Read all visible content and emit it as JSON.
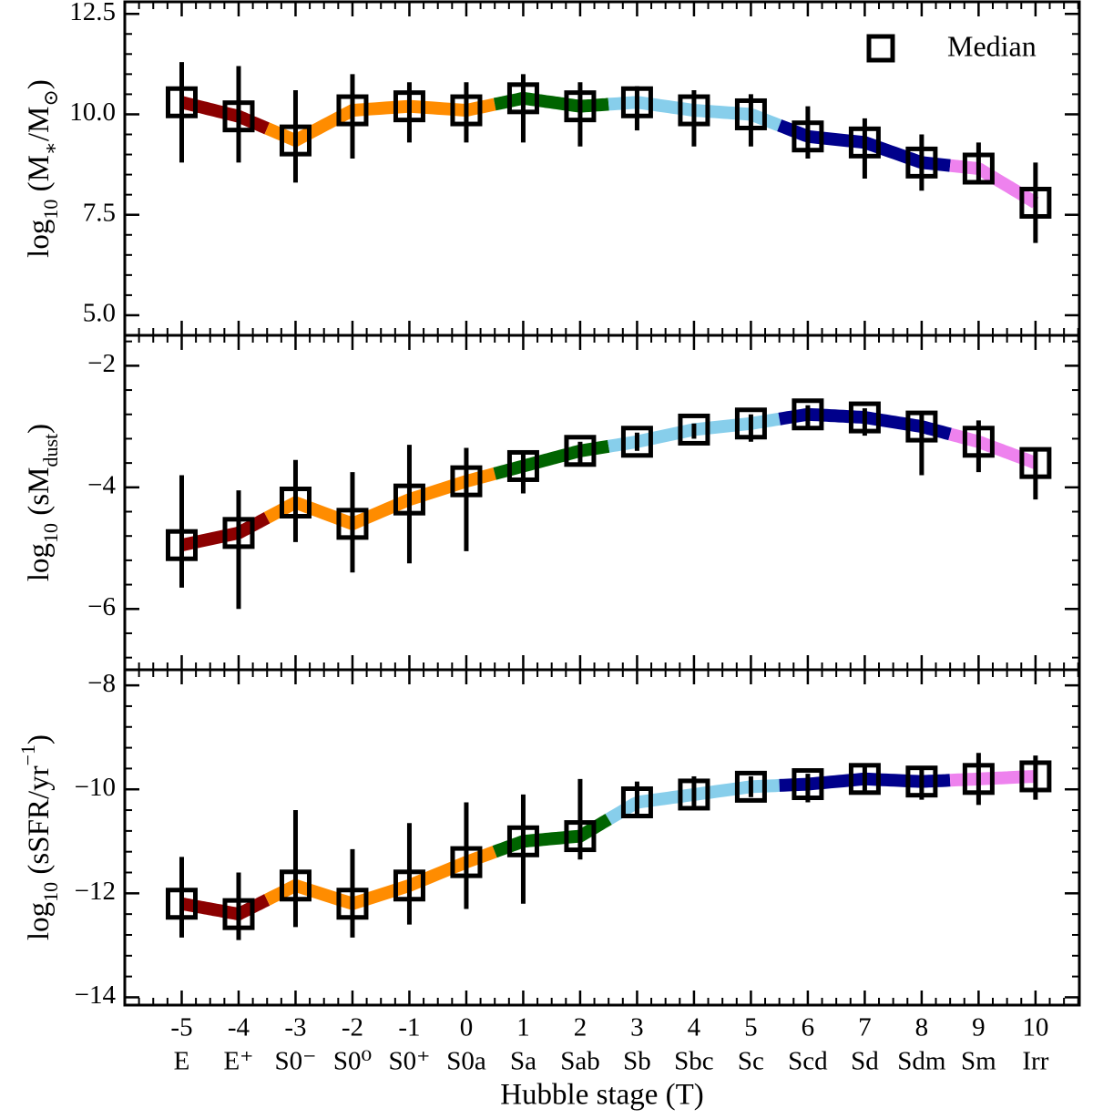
{
  "chart_data": [
    {
      "type": "errorbar",
      "legend": "Median",
      "legend_loc": "upper right",
      "ylabel": [
        {
          "t": "log"
        },
        {
          "t": "10",
          "s": "sub"
        },
        {
          "t": " (M"
        },
        {
          "t": "∗",
          "s": "sub"
        },
        {
          "t": "/M"
        },
        {
          "t": "⊙",
          "s": "sub"
        },
        {
          "t": ")"
        }
      ],
      "ylim": [
        4.5,
        12.8
      ],
      "yticks": [
        {
          "value": 5,
          "label": "5.0"
        },
        7.5,
        {
          "value": 10,
          "label": "10.0"
        },
        12.5
      ],
      "x": [
        -5,
        -4,
        -3,
        -2,
        -1,
        0,
        1,
        2,
        3,
        4,
        5,
        6,
        7,
        8,
        9,
        10
      ],
      "values": [
        10.3,
        9.95,
        9.35,
        10.1,
        10.2,
        10.1,
        10.4,
        10.2,
        10.3,
        10.1,
        10.0,
        9.45,
        9.3,
        8.8,
        8.65,
        7.8
      ],
      "lower": [
        8.8,
        8.8,
        8.3,
        8.9,
        9.3,
        9.3,
        9.3,
        9.2,
        9.6,
        9.2,
        9.2,
        8.9,
        8.4,
        8.1,
        8.3,
        6.8
      ],
      "upper": [
        11.3,
        11.2,
        10.6,
        11.0,
        10.8,
        10.8,
        11.0,
        10.8,
        10.7,
        10.6,
        10.5,
        10.2,
        9.9,
        9.5,
        9.3,
        8.8
      ],
      "segments": [
        {
          "color": "#8b0000",
          "span": [
            -5,
            -3.5
          ]
        },
        {
          "color": "#ff8c00",
          "span": [
            -3.5,
            0.5
          ]
        },
        {
          "color": "#006400",
          "span": [
            0.5,
            2.5
          ]
        },
        {
          "color": "#87ceeb",
          "span": [
            2.5,
            5.5
          ]
        },
        {
          "color": "#00008b",
          "span": [
            5.5,
            8.5
          ]
        },
        {
          "color": "#ee82ee",
          "span": [
            8.5,
            10
          ]
        }
      ]
    },
    {
      "type": "errorbar",
      "ylabel": [
        {
          "t": "log"
        },
        {
          "t": "10",
          "s": "sub"
        },
        {
          "t": " (sM"
        },
        {
          "t": "dust",
          "s": "sub"
        },
        {
          "t": ")"
        }
      ],
      "ylim": [
        -7.0,
        -1.5
      ],
      "yticks": [
        {
          "value": -6,
          "label": "−6"
        },
        {
          "value": -4,
          "label": "−4"
        },
        {
          "value": -2,
          "label": "−2"
        }
      ],
      "x": [
        -5,
        -4,
        -3,
        -2,
        -1,
        0,
        1,
        2,
        3,
        4,
        5,
        6,
        7,
        8,
        9,
        10
      ],
      "values": [
        -4.95,
        -4.75,
        -4.25,
        -4.6,
        -4.2,
        -3.9,
        -3.65,
        -3.4,
        -3.25,
        -3.05,
        -2.95,
        -2.8,
        -2.85,
        -3.0,
        -3.25,
        -3.6
      ],
      "lower": [
        -5.65,
        -6.0,
        -4.9,
        -5.4,
        -5.25,
        -5.05,
        -4.1,
        -3.6,
        -3.4,
        -3.2,
        -3.25,
        -3.05,
        -3.15,
        -3.8,
        -3.75,
        -4.2
      ],
      "upper": [
        -3.8,
        -4.05,
        -3.55,
        -3.75,
        -3.3,
        -3.35,
        -3.45,
        -3.25,
        -3.1,
        -2.95,
        -2.8,
        -2.65,
        -2.7,
        -2.75,
        -2.9,
        -3.4
      ],
      "segments": [
        {
          "color": "#8b0000",
          "span": [
            -5,
            -3.5
          ]
        },
        {
          "color": "#ff8c00",
          "span": [
            -3.5,
            0.5
          ]
        },
        {
          "color": "#006400",
          "span": [
            0.5,
            2.5
          ]
        },
        {
          "color": "#87ceeb",
          "span": [
            2.5,
            5.5
          ]
        },
        {
          "color": "#00008b",
          "span": [
            5.5,
            8.5
          ]
        },
        {
          "color": "#ee82ee",
          "span": [
            8.5,
            10
          ]
        }
      ]
    },
    {
      "type": "errorbar",
      "ylabel": [
        {
          "t": "log"
        },
        {
          "t": "10",
          "s": "sub"
        },
        {
          "t": " (sSFR/yr"
        },
        {
          "t": "−1",
          "s": "super"
        },
        {
          "t": ")"
        }
      ],
      "ylim": [
        -14.15,
        -7.7
      ],
      "yticks": [
        {
          "value": -14,
          "label": "−14"
        },
        {
          "value": -12,
          "label": "−12"
        },
        {
          "value": -10,
          "label": "−10"
        },
        {
          "value": -8,
          "label": "−8"
        }
      ],
      "x": [
        -5,
        -4,
        -3,
        -2,
        -1,
        0,
        1,
        2,
        3,
        4,
        5,
        6,
        7,
        8,
        9,
        10
      ],
      "values": [
        -12.2,
        -12.4,
        -11.85,
        -12.2,
        -11.85,
        -11.4,
        -11.0,
        -10.9,
        -10.25,
        -10.1,
        -9.95,
        -9.9,
        -9.8,
        -9.85,
        -9.8,
        -9.75
      ],
      "lower": [
        -12.85,
        -12.9,
        -12.65,
        -12.85,
        -12.6,
        -12.3,
        -12.2,
        -11.35,
        -10.55,
        -10.35,
        -10.15,
        -10.25,
        -10.1,
        -10.2,
        -10.3,
        -10.2
      ],
      "upper": [
        -11.3,
        -11.6,
        -10.4,
        -11.15,
        -10.65,
        -10.25,
        -10.1,
        -9.8,
        -9.85,
        -9.75,
        -9.75,
        -9.7,
        -9.55,
        -9.6,
        -9.3,
        -9.35
      ],
      "segments": [
        {
          "color": "#8b0000",
          "span": [
            -5,
            -3.5
          ]
        },
        {
          "color": "#ff8c00",
          "span": [
            -3.5,
            0.5
          ]
        },
        {
          "color": "#006400",
          "span": [
            0.5,
            2.5
          ]
        },
        {
          "color": "#87ceeb",
          "span": [
            2.5,
            5.5
          ]
        },
        {
          "color": "#00008b",
          "span": [
            5.5,
            8.5
          ]
        },
        {
          "color": "#ee82ee",
          "span": [
            8.5,
            10
          ]
        }
      ],
      "xlabel": "Hubble stage (T)",
      "xlim": [
        -6.0,
        10.77
      ],
      "xticks": [
        -5,
        -4,
        -3,
        -2,
        -1,
        0,
        1,
        2,
        3,
        4,
        5,
        6,
        7,
        8,
        9,
        10
      ],
      "xtick_names": [
        "E",
        "E⁺",
        "S0⁻",
        "S0⁰",
        "S0⁺",
        "S0a",
        "Sa",
        "Sab",
        "Sb",
        "Sbc",
        "Sc",
        "Scd",
        "Sd",
        "Sdm",
        "Sm",
        "Irr"
      ]
    }
  ]
}
